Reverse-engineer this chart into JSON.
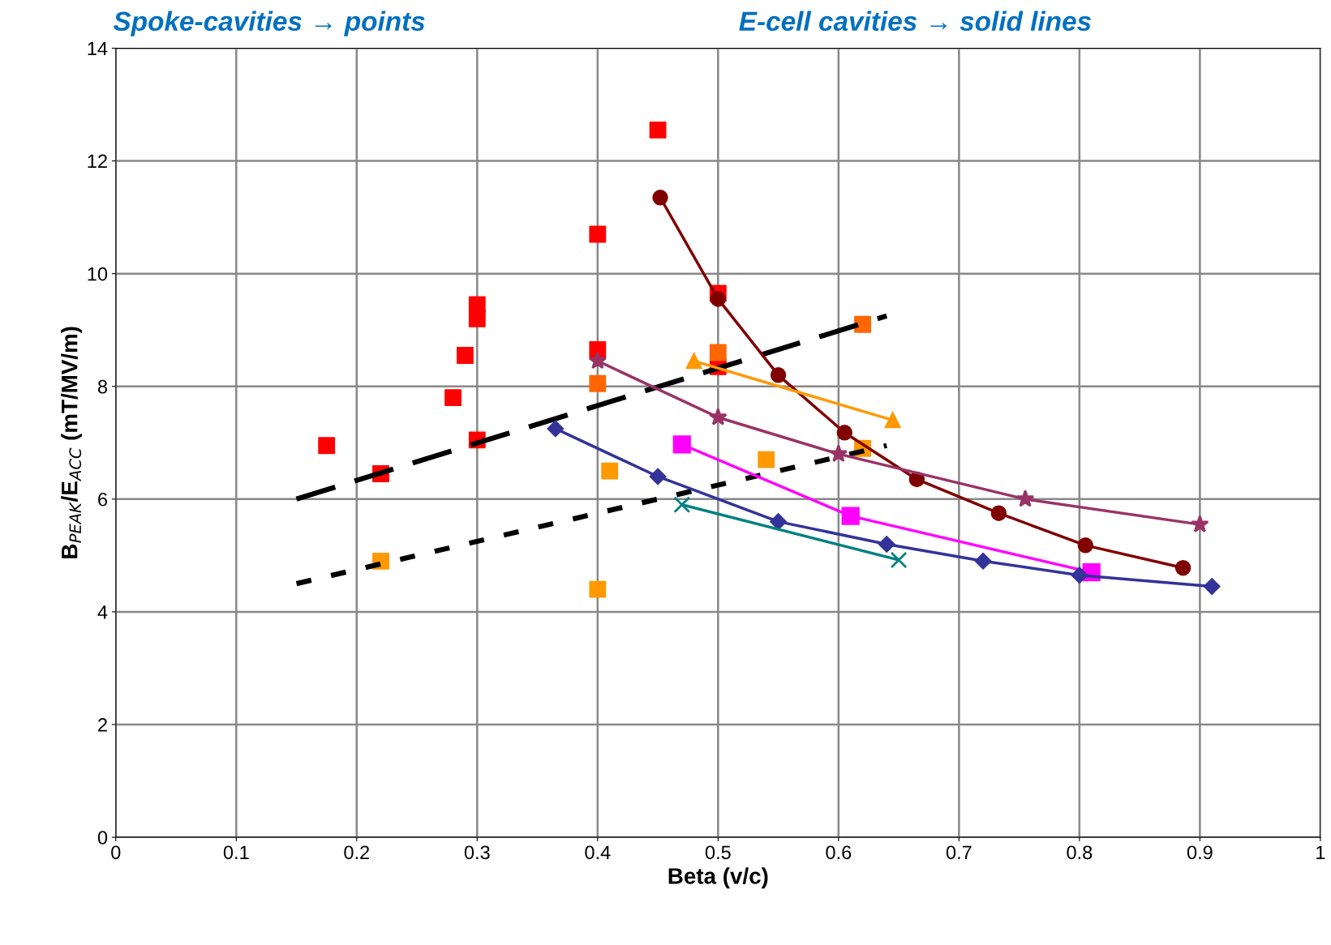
{
  "chart_data": {
    "type": "scatter",
    "xlabel": "Beta (v/c)",
    "ylabel": "B$_{PEAK}$/E$_{ACC}$ (mT/MV/m)",
    "annotations": [
      "Spoke-cavities → points",
      "E-cell cavities → solid lines"
    ],
    "xlim": [
      0,
      1
    ],
    "ylim": [
      0,
      14
    ],
    "xticks": [
      0,
      0.1,
      0.2,
      0.3,
      0.4,
      0.5,
      0.6,
      0.7,
      0.8,
      0.9,
      1
    ],
    "yticks": [
      0,
      2,
      4,
      6,
      8,
      10,
      12,
      14
    ],
    "grid": true,
    "legend": false,
    "series": [
      {
        "type": "line",
        "line_style": "dashed",
        "marker": "none",
        "color": "#000000",
        "x": [
          0.15,
          0.64
        ],
        "values": [
          6.0,
          9.25
        ]
      },
      {
        "type": "line",
        "line_style": "dotted",
        "marker": "none",
        "color": "#000000",
        "x": [
          0.15,
          0.64
        ],
        "values": [
          4.5,
          6.95
        ]
      },
      {
        "marker": "square",
        "color": "#ff0000",
        "x": [
          0.175,
          0.22,
          0.28,
          0.29,
          0.3,
          0.3,
          0.3,
          0.4,
          0.4,
          0.45,
          0.5,
          0.5
        ],
        "values": [
          6.95,
          6.45,
          7.8,
          8.55,
          9.2,
          9.45,
          7.05,
          10.7,
          8.65,
          12.55,
          9.65,
          8.35
        ]
      },
      {
        "marker": "square",
        "color": "#ff6600",
        "x": [
          0.4,
          0.5,
          0.62
        ],
        "values": [
          8.05,
          8.6,
          9.1
        ]
      },
      {
        "marker": "square",
        "color": "#ff9900",
        "x": [
          0.22,
          0.4,
          0.41,
          0.54,
          0.62
        ],
        "values": [
          4.9,
          4.4,
          6.5,
          6.7,
          6.9
        ]
      },
      {
        "type": "line",
        "marker": "circle",
        "color": "#800000",
        "x": [
          0.452,
          0.5,
          0.55,
          0.605,
          0.665,
          0.733,
          0.805,
          0.886
        ],
        "values": [
          11.35,
          9.55,
          8.2,
          7.18,
          6.35,
          5.75,
          5.18,
          4.78
        ]
      },
      {
        "type": "line",
        "marker": "triangle",
        "color": "#ff9900",
        "x": [
          0.48,
          0.645
        ],
        "values": [
          8.45,
          7.4
        ]
      },
      {
        "type": "line",
        "marker": "star",
        "color": "#993366",
        "x": [
          0.4,
          0.5,
          0.6,
          0.755,
          0.9
        ],
        "values": [
          8.45,
          7.45,
          6.8,
          6.0,
          5.55
        ]
      },
      {
        "type": "line",
        "marker": "square",
        "color": "#ff00ff",
        "x": [
          0.47,
          0.61,
          0.81
        ],
        "values": [
          6.97,
          5.7,
          4.7
        ]
      },
      {
        "type": "line",
        "marker": "diamond",
        "color": "#333399",
        "x": [
          0.365,
          0.45,
          0.55,
          0.64,
          0.72,
          0.8,
          0.91
        ],
        "values": [
          7.25,
          6.4,
          5.6,
          5.2,
          4.9,
          4.65,
          4.45
        ]
      },
      {
        "type": "line",
        "marker": "cross",
        "color": "#008080",
        "x": [
          0.47,
          0.65
        ],
        "values": [
          5.9,
          4.92
        ]
      }
    ]
  }
}
